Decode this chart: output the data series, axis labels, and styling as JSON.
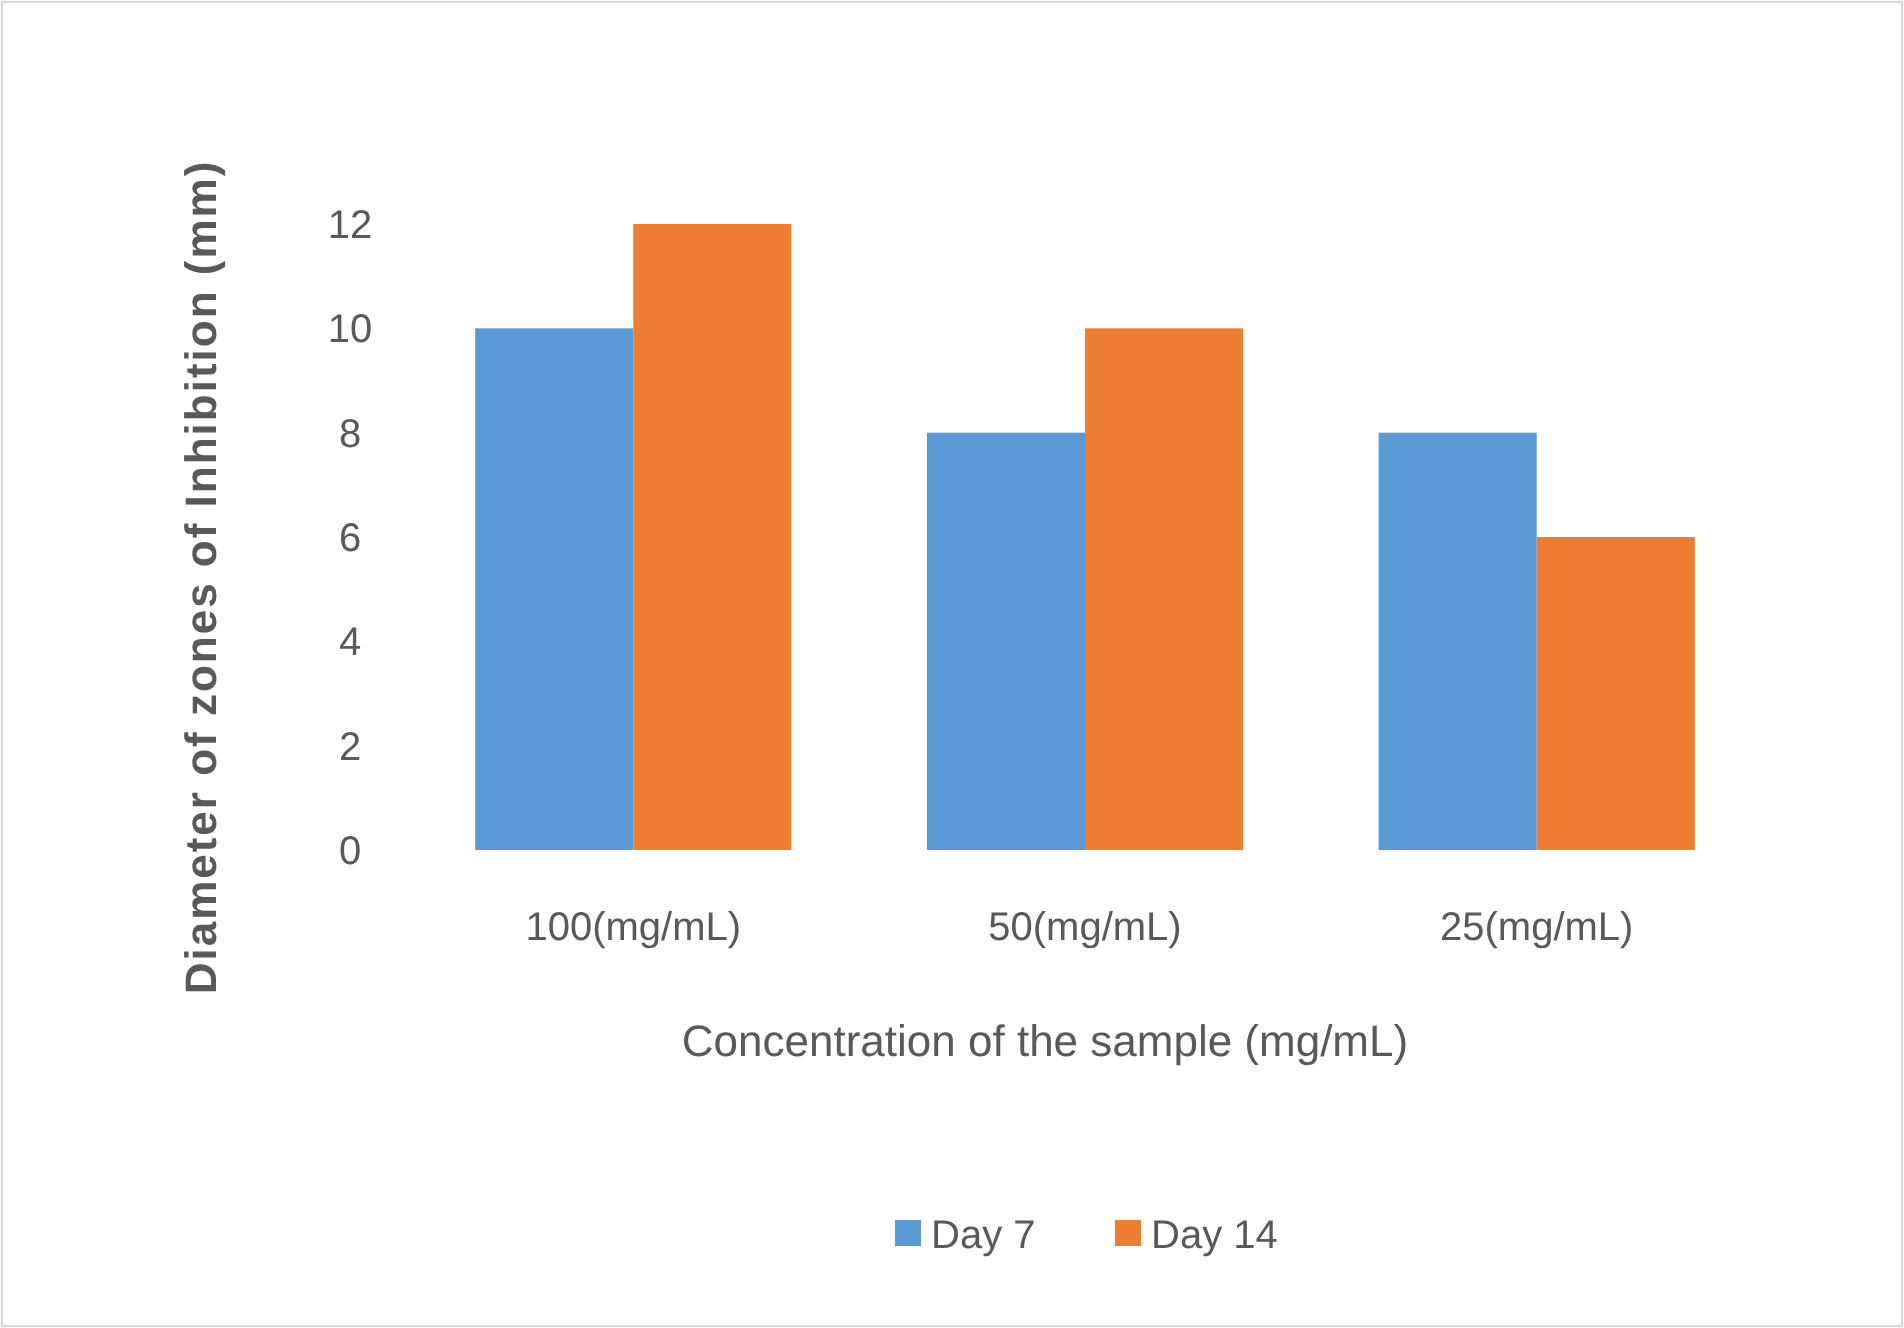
{
  "chart_data": {
    "type": "bar",
    "xlabel": "Concentration of the sample (mg/mL)",
    "ylabel": "Diameter of zones of Inhibition (mm)",
    "categories": [
      "100(mg/mL)",
      "50(mg/mL)",
      "25(mg/mL)"
    ],
    "series": [
      {
        "name": "Day 7",
        "color": "#5b9bd5",
        "values": [
          10,
          8,
          8
        ]
      },
      {
        "name": "Day 14",
        "color": "#ed7d31",
        "values": [
          12,
          10,
          6
        ]
      }
    ],
    "ylim": [
      0,
      12
    ],
    "yticks": [
      0,
      2,
      4,
      6,
      8,
      10,
      12
    ],
    "grid": false,
    "legend": "bottom"
  }
}
